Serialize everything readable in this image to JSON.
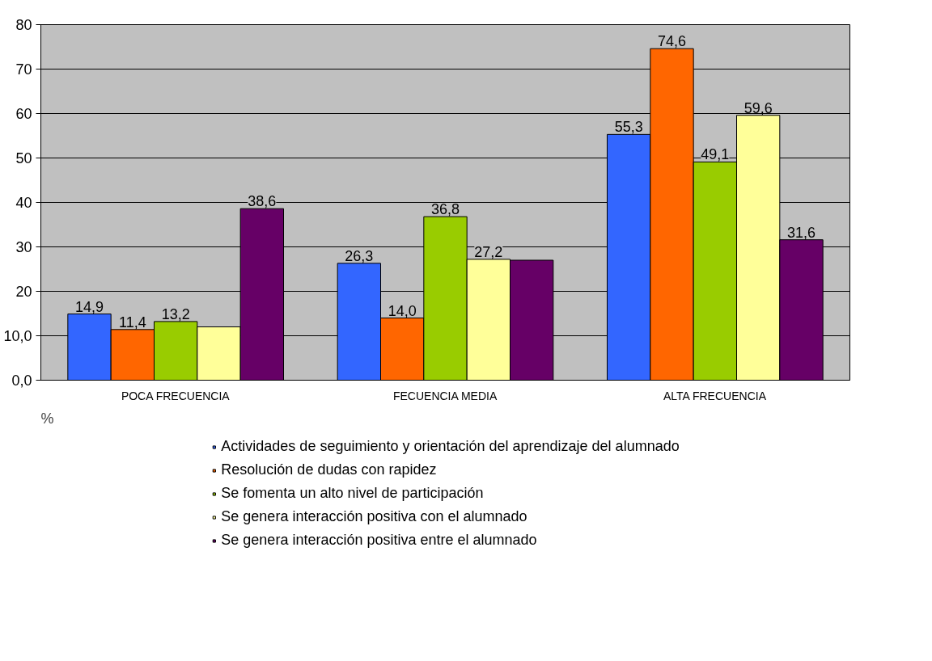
{
  "chart_data": {
    "type": "bar",
    "annotations": [
      "%"
    ],
    "categories": [
      "POCA FRECUENCIA",
      "FECUENCIA MEDIA",
      "ALTA FRECUENCIA"
    ],
    "series": [
      {
        "name": "Actividades de seguimiento y orientación del aprendizaje del alumnado",
        "color": "#3366ff",
        "values": [
          14.9,
          26.3,
          55.3
        ],
        "value_labels": [
          "14,9",
          "26,3",
          "55,3"
        ]
      },
      {
        "name": "Resolución de dudas con rapidez",
        "color": "#ff6600",
        "values": [
          11.4,
          14.0,
          74.6
        ],
        "value_labels": [
          "11,4",
          "14,0",
          "74,6"
        ]
      },
      {
        "name": "Se fomenta un alto nivel de participación",
        "color": "#99cc00",
        "values": [
          13.2,
          36.8,
          49.1
        ],
        "value_labels": [
          "13,2",
          "36,8",
          "49,1"
        ]
      },
      {
        "name": "Se genera interacción positiva con el alumnado",
        "color": "#ffff99",
        "values": [
          12,
          27.2,
          59.6
        ],
        "value_labels": [
          null,
          "27,2",
          "59,6"
        ]
      },
      {
        "name": "Se genera interacción positiva entre el alumnado",
        "color": "#660066",
        "values": [
          38.6,
          27,
          31.6
        ],
        "value_labels": [
          "38,6",
          null,
          "31,6"
        ]
      }
    ],
    "ylim": [
      0,
      80
    ],
    "yticks": [
      {
        "value": 0,
        "label": "0,0"
      },
      {
        "value": 10,
        "label": "10,0"
      },
      20,
      30,
      40,
      50,
      60,
      70,
      80
    ],
    "grid": "y",
    "legend": "bottom"
  }
}
